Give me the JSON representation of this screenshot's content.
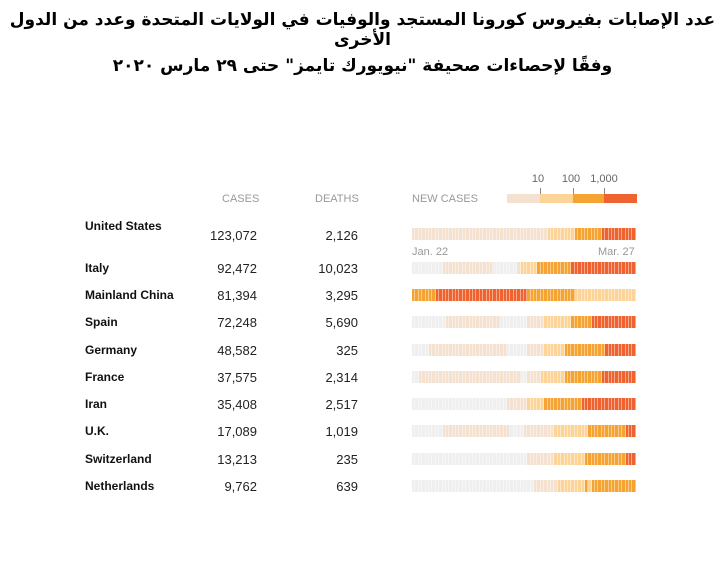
{
  "title": {
    "line1": "عدد الإصابات بفيروس كورونا المستجد والوفيات في الولايات المتحدة وعدد من الدول الأخرى",
    "line2": "وفقًا لإحصاءات صحيفة \"نيويورك تايمز\" حتى ٢٩ مارس ٢٠٢٠"
  },
  "chart_data": {
    "type": "table",
    "columns": [
      "",
      "CASES",
      "DEATHS",
      "NEW CASES"
    ],
    "legend": {
      "ticks": [
        "10",
        "100",
        "1,000"
      ],
      "colors": [
        "#f5e1cf",
        "#fcd497",
        "#f5a332",
        "#ee6330"
      ],
      "empty_color": "#efefef"
    },
    "x_range_labels": [
      "Jan. 22",
      "Mar. 27"
    ],
    "level_meaning": "0=no data/0, 1=<10, 2=10-100, 3=100-1,000, 4=>1,000 new cases per day",
    "rows": [
      {
        "country": "United States",
        "cases": "123,072",
        "deaths": "2,126",
        "new_cases_runs": [
          [
            1,
            40
          ],
          [
            2,
            8
          ],
          [
            3,
            8
          ],
          [
            4,
            10
          ]
        ]
      },
      {
        "country": "Italy",
        "cases": "92,472",
        "deaths": "10,023",
        "new_cases_runs": [
          [
            0,
            9
          ],
          [
            1,
            15
          ],
          [
            0,
            7
          ],
          [
            1,
            1
          ],
          [
            2,
            5
          ],
          [
            3,
            10
          ],
          [
            4,
            19
          ]
        ]
      },
      {
        "country": "Mainland China",
        "cases": "81,394",
        "deaths": "3,295",
        "new_cases_runs": [
          [
            3,
            7
          ],
          [
            4,
            27
          ],
          [
            3,
            14
          ],
          [
            2,
            18
          ]
        ]
      },
      {
        "country": "Spain",
        "cases": "72,248",
        "deaths": "5,690",
        "new_cases_runs": [
          [
            0,
            10
          ],
          [
            1,
            16
          ],
          [
            0,
            8
          ],
          [
            1,
            5
          ],
          [
            2,
            8
          ],
          [
            3,
            6
          ],
          [
            4,
            13
          ]
        ]
      },
      {
        "country": "Germany",
        "cases": "48,582",
        "deaths": "325",
        "new_cases_runs": [
          [
            0,
            5
          ],
          [
            1,
            23
          ],
          [
            0,
            6
          ],
          [
            1,
            5
          ],
          [
            2,
            6
          ],
          [
            3,
            12
          ],
          [
            4,
            9
          ]
        ]
      },
      {
        "country": "France",
        "cases": "37,575",
        "deaths": "2,314",
        "new_cases_runs": [
          [
            0,
            2
          ],
          [
            1,
            30
          ],
          [
            0,
            2
          ],
          [
            1,
            4
          ],
          [
            2,
            7
          ],
          [
            3,
            11
          ],
          [
            4,
            10
          ]
        ]
      },
      {
        "country": "Iran",
        "cases": "35,408",
        "deaths": "2,517",
        "new_cases_runs": [
          [
            0,
            28
          ],
          [
            1,
            6
          ],
          [
            2,
            5
          ],
          [
            3,
            11
          ],
          [
            4,
            16
          ]
        ]
      },
      {
        "country": "U.K.",
        "cases": "17,089",
        "deaths": "1,019",
        "new_cases_runs": [
          [
            0,
            9
          ],
          [
            1,
            20
          ],
          [
            0,
            4
          ],
          [
            1,
            9
          ],
          [
            2,
            10
          ],
          [
            3,
            11
          ],
          [
            4,
            3
          ]
        ]
      },
      {
        "country": "Switzerland",
        "cases": "13,213",
        "deaths": "235",
        "new_cases_runs": [
          [
            0,
            34
          ],
          [
            1,
            8
          ],
          [
            2,
            9
          ],
          [
            3,
            12
          ],
          [
            4,
            3
          ]
        ]
      },
      {
        "country": "Netherlands",
        "cases": "9,762",
        "deaths": "639",
        "new_cases_runs": [
          [
            0,
            36
          ],
          [
            1,
            7
          ],
          [
            2,
            8
          ],
          [
            3,
            1
          ],
          [
            2,
            1
          ],
          [
            3,
            13
          ]
        ]
      }
    ]
  }
}
